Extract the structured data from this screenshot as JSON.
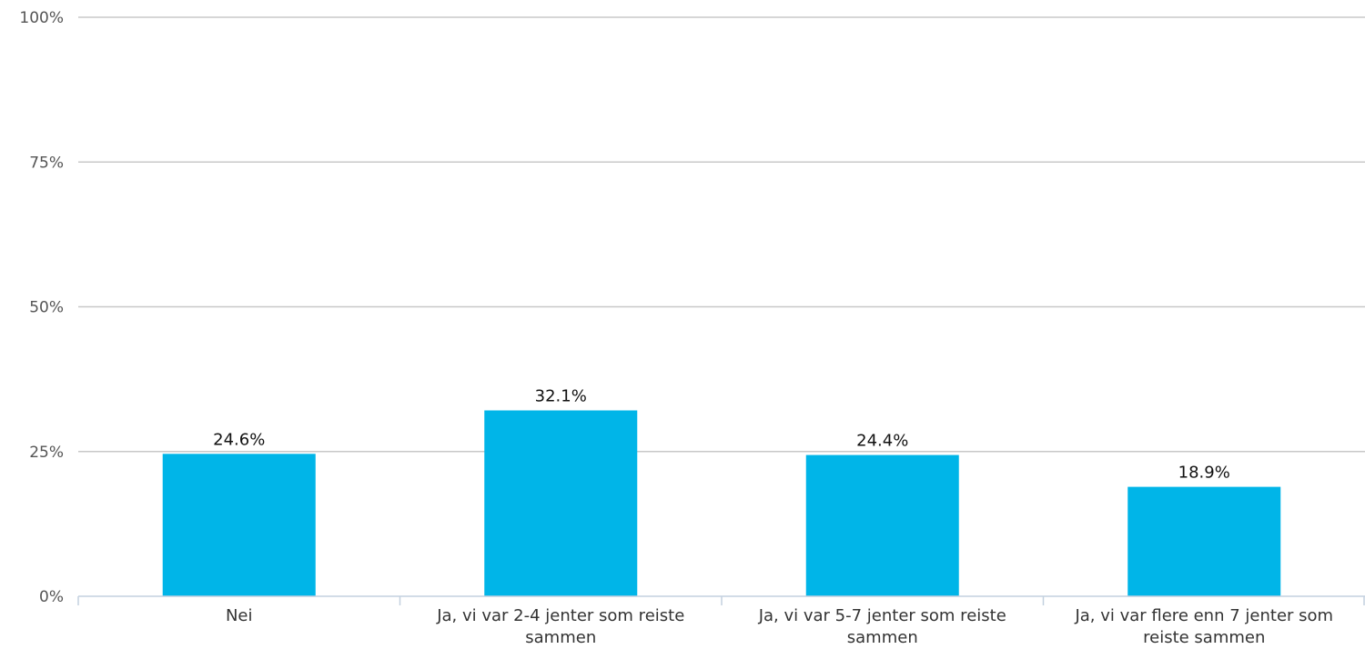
{
  "chart_data": {
    "type": "bar",
    "title": "",
    "xlabel": "",
    "ylabel": "",
    "categories": [
      [
        "Nei"
      ],
      [
        "Ja, vi var 2-4 jenter som reiste",
        "sammen"
      ],
      [
        "Ja, vi var 5-7 jenter som reiste",
        "sammen"
      ],
      [
        "Ja, vi var flere enn 7 jenter som",
        "reiste sammen"
      ]
    ],
    "values": [
      24.6,
      32.1,
      24.4,
      18.9
    ],
    "data_labels": [
      "24.6%",
      "32.1%",
      "24.4%",
      "18.9%"
    ],
    "ylim": [
      0,
      100
    ],
    "yticks": [
      0,
      25,
      50,
      75,
      100
    ],
    "ytick_labels": [
      "0%",
      "25%",
      "50%",
      "75%",
      "100%"
    ],
    "grid": true,
    "legend": "none",
    "colors": {
      "bar": "#00b5e8"
    }
  }
}
